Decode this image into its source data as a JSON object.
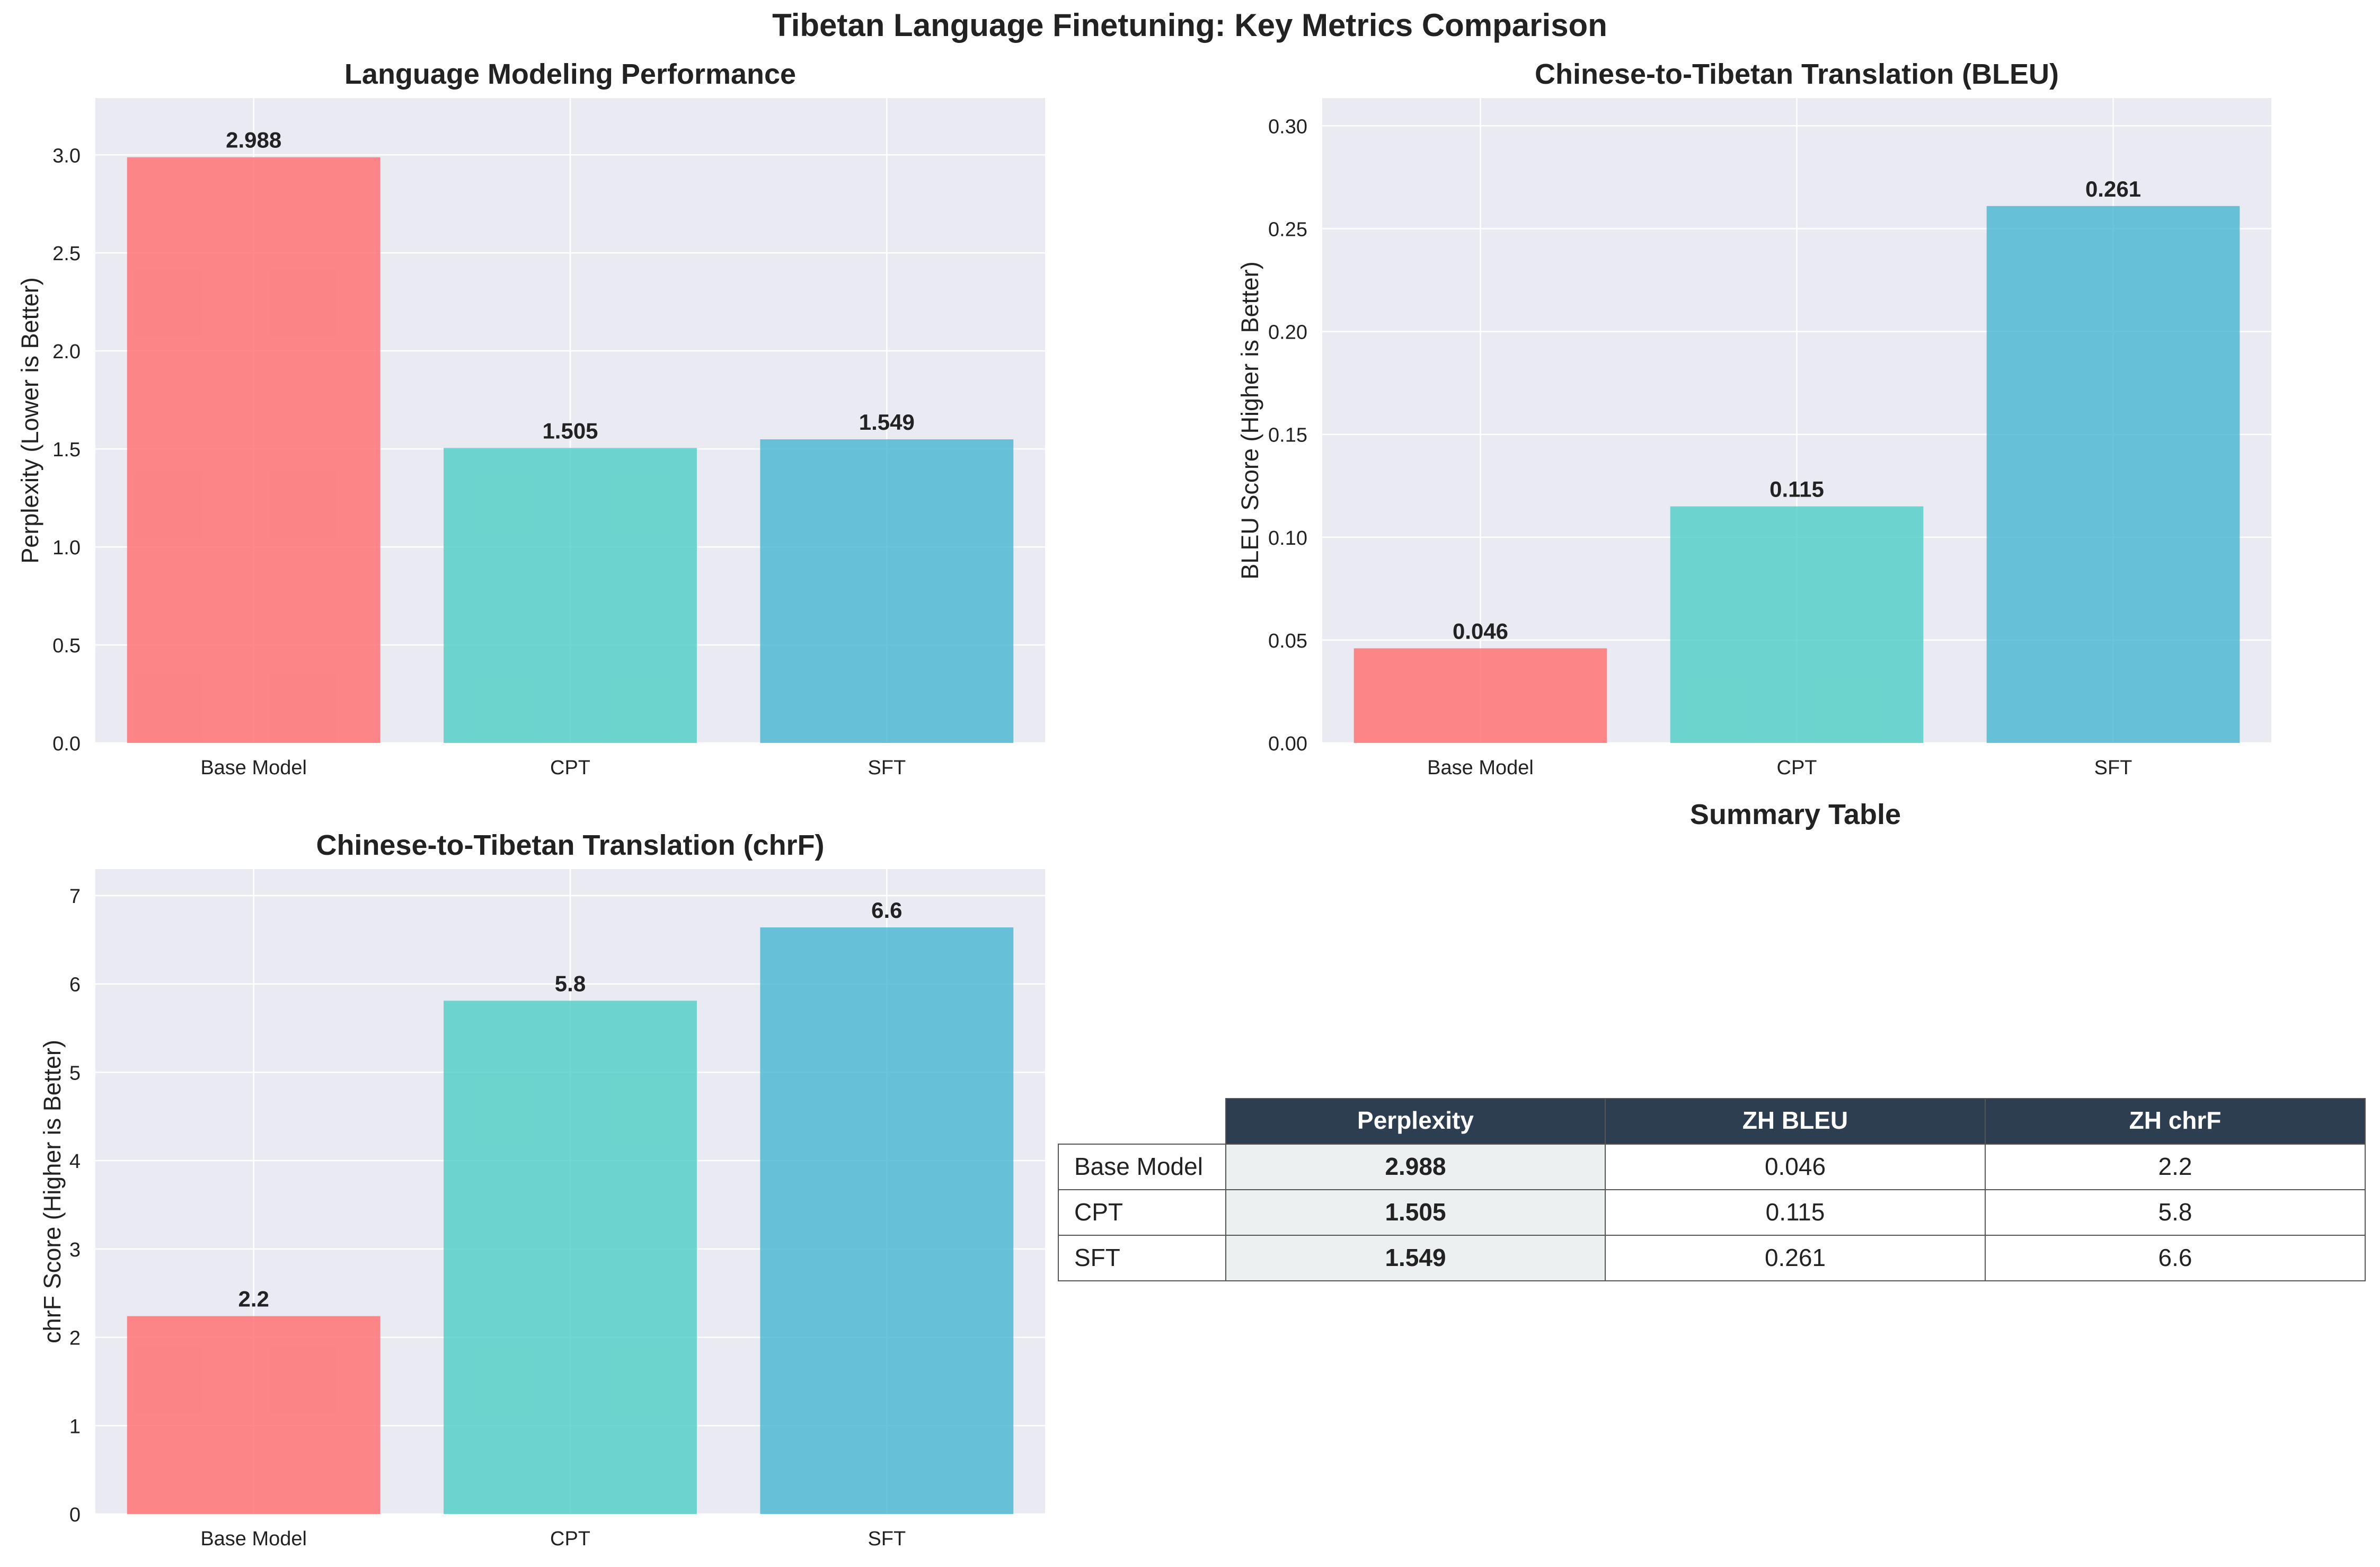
{
  "title": "Tibetan Language Finetuning: Key Metrics Comparison",
  "colors": {
    "bars": [
      "#ff6b6b",
      "#4ecdc4",
      "#45b7d1"
    ],
    "plot_bg": "#eaeaf2",
    "grid": "#ffffff",
    "table_header": "#2c3e50",
    "table_highlight": "#ecf0f1"
  },
  "chart_data": [
    {
      "type": "bar",
      "title": "Language Modeling Performance",
      "xlabel": "",
      "ylabel": "Perplexity (Lower is Better)",
      "categories": [
        "Base Model",
        "CPT",
        "SFT"
      ],
      "values": [
        2.988,
        1.505,
        1.549
      ],
      "value_labels": [
        "2.988",
        "1.505",
        "1.549"
      ],
      "ylim": [
        0,
        3.29
      ],
      "yticks": [
        0.0,
        0.5,
        1.0,
        1.5,
        2.0,
        2.5,
        3.0
      ],
      "ytick_labels": [
        "0.0",
        "0.5",
        "1.0",
        "1.5",
        "2.0",
        "2.5",
        "3.0"
      ],
      "grid": true
    },
    {
      "type": "bar",
      "title": "Chinese-to-Tibetan Translation (BLEU)",
      "xlabel": "",
      "ylabel": "BLEU Score (Higher is Better)",
      "categories": [
        "Base Model",
        "CPT",
        "SFT"
      ],
      "values": [
        0.046,
        0.115,
        0.261
      ],
      "value_labels": [
        "0.046",
        "0.115",
        "0.261"
      ],
      "ylim": [
        0,
        0.3135
      ],
      "yticks": [
        0.0,
        0.05,
        0.1,
        0.15,
        0.2,
        0.25,
        0.3
      ],
      "ytick_labels": [
        "0.00",
        "0.05",
        "0.10",
        "0.15",
        "0.20",
        "0.25",
        "0.30"
      ],
      "grid": true
    },
    {
      "type": "bar",
      "title": "Chinese-to-Tibetan Translation (chrF)",
      "xlabel": "",
      "ylabel": "chrF Score (Higher is Better)",
      "categories": [
        "Base Model",
        "CPT",
        "SFT"
      ],
      "values": [
        2.24,
        5.81,
        6.64
      ],
      "value_labels": [
        "2.2",
        "5.8",
        "6.6"
      ],
      "ylim": [
        0,
        7.3
      ],
      "yticks": [
        0,
        1,
        2,
        3,
        4,
        5,
        6,
        7
      ],
      "ytick_labels": [
        "0",
        "1",
        "2",
        "3",
        "4",
        "5",
        "6",
        "7"
      ],
      "grid": true
    },
    {
      "type": "table",
      "title": "Summary Table",
      "columns": [
        "Perplexity",
        "ZH BLEU",
        "ZH chrF"
      ],
      "rows": [
        {
          "label": "Base Model",
          "cells": [
            "2.988",
            "0.046",
            "2.2"
          ]
        },
        {
          "label": "CPT",
          "cells": [
            "1.505",
            "0.115",
            "5.8"
          ]
        },
        {
          "label": "SFT",
          "cells": [
            "1.549",
            "0.261",
            "6.6"
          ]
        }
      ]
    }
  ]
}
